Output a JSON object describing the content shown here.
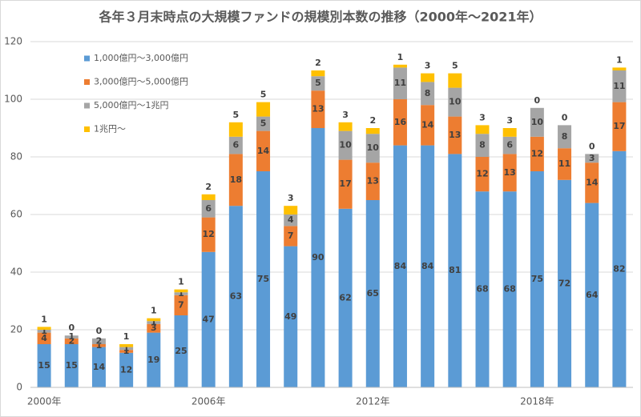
{
  "chart_data": {
    "type": "stacked_bar",
    "title": "各年３月末時点の大規模ファンドの規模別本数の推移（2000年〜2021年）",
    "categories": [
      "2000年",
      null,
      null,
      null,
      null,
      null,
      "2006年",
      null,
      null,
      null,
      null,
      null,
      "2012年",
      null,
      null,
      null,
      null,
      null,
      "2018年",
      null,
      null,
      null
    ],
    "series": [
      {
        "name": "1,000億円〜3,000億円",
        "color": "#5b9bd5",
        "values": [
          15,
          15,
          14,
          12,
          19,
          25,
          47,
          63,
          75,
          49,
          90,
          62,
          65,
          84,
          84,
          81,
          68,
          68,
          75,
          72,
          64,
          82
        ]
      },
      {
        "name": "3,000億円〜5,000億円",
        "color": "#ed7d31",
        "values": [
          4,
          2,
          1,
          1,
          3,
          7,
          12,
          18,
          14,
          7,
          13,
          17,
          13,
          16,
          14,
          13,
          12,
          13,
          12,
          11,
          14,
          17
        ]
      },
      {
        "name": "5,000億円〜1兆円",
        "color": "#a5a5a5",
        "values": [
          1,
          1,
          2,
          1,
          1,
          1,
          6,
          6,
          5,
          4,
          5,
          10,
          10,
          11,
          8,
          10,
          8,
          6,
          10,
          8,
          3,
          11
        ]
      },
      {
        "name": "1兆円〜",
        "color": "#ffc000",
        "values": [
          1,
          0,
          0,
          1,
          1,
          1,
          2,
          5,
          5,
          3,
          2,
          3,
          2,
          1,
          3,
          5,
          3,
          3,
          0,
          0,
          0,
          1
        ]
      }
    ],
    "ylim": [
      0,
      120
    ],
    "yticks": [
      0,
      20,
      40,
      60,
      80,
      100,
      120
    ],
    "grid": true,
    "legend": "upper-left"
  }
}
